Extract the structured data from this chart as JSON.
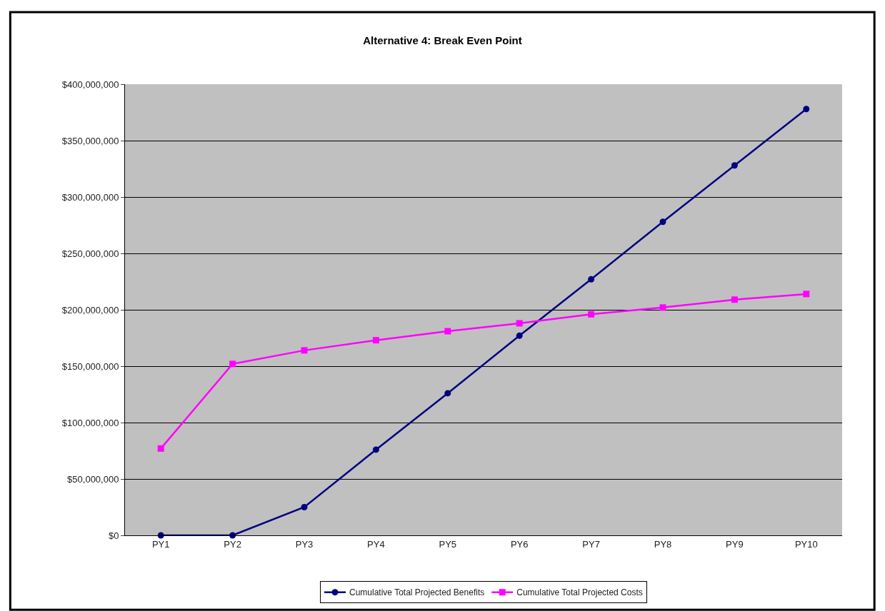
{
  "chart_data": {
    "type": "line",
    "title": "Alternative 4: Break Even Point",
    "categories": [
      "PY1",
      "PY2",
      "PY3",
      "PY4",
      "PY5",
      "PY6",
      "PY7",
      "PY8",
      "PY9",
      "PY10"
    ],
    "series": [
      {
        "name": "Cumulative Total Projected Benefits",
        "color": "#000080",
        "marker": "circle",
        "values": [
          0,
          0,
          25000000,
          76000000,
          126000000,
          177000000,
          227000000,
          278000000,
          328000000,
          378000000
        ]
      },
      {
        "name": "Cumulative Total Projected Costs",
        "color": "#ff00ff",
        "marker": "square",
        "values": [
          77000000,
          152000000,
          164000000,
          173000000,
          181000000,
          188000000,
          196000000,
          202000000,
          209000000,
          214000000
        ]
      }
    ],
    "ylim": [
      0,
      400000000
    ],
    "yticks": [
      {
        "value": 0,
        "label": "$0"
      },
      {
        "value": 50000000,
        "label": "$50,000,000"
      },
      {
        "value": 100000000,
        "label": "$100,000,000"
      },
      {
        "value": 150000000,
        "label": "$150,000,000"
      },
      {
        "value": 200000000,
        "label": "$200,000,000"
      },
      {
        "value": 250000000,
        "label": "$250,000,000"
      },
      {
        "value": 300000000,
        "label": "$300,000,000"
      },
      {
        "value": 350000000,
        "label": "$350,000,000"
      },
      {
        "value": 400000000,
        "label": "$400,000,000"
      }
    ],
    "grid": "y",
    "legend": "bottom",
    "line_style": "solid"
  }
}
